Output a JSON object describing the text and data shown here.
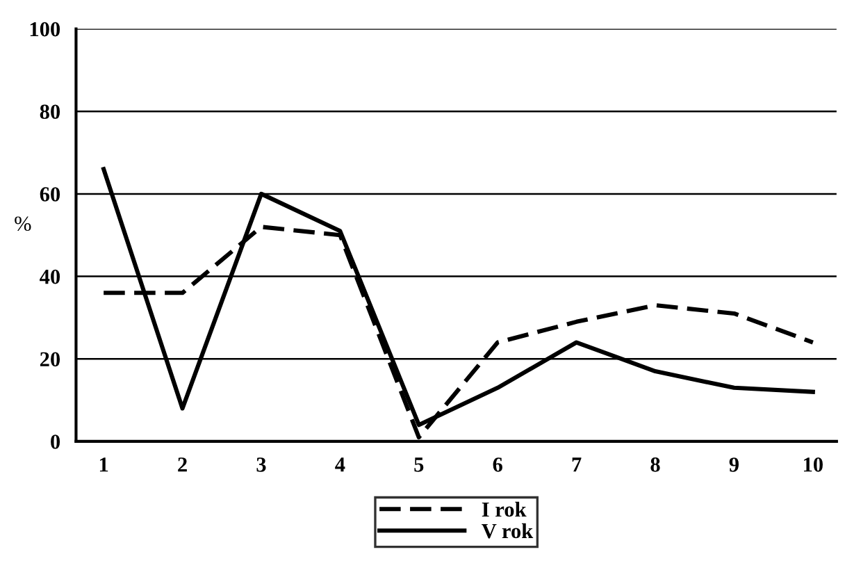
{
  "chart_data": {
    "type": "line",
    "ylabel": "%",
    "categories": [
      "1",
      "2",
      "3",
      "4",
      "5",
      "6",
      "7",
      "8",
      "9",
      "10"
    ],
    "series": [
      {
        "name": "I rok",
        "color": "#000000",
        "line_style": "dashed",
        "values": [
          36,
          36,
          52,
          50,
          1,
          24,
          29,
          33,
          31,
          24
        ]
      },
      {
        "name": "V rok",
        "color": "#000000",
        "line_style": "solid",
        "values": [
          66,
          8,
          60,
          51,
          4,
          13,
          24,
          17,
          13,
          12
        ]
      }
    ],
    "ylim": [
      0,
      100
    ],
    "yticks": [
      0,
      20,
      40,
      60,
      80,
      100
    ],
    "grid": "y",
    "legend": "bottom",
    "marker": "none"
  }
}
